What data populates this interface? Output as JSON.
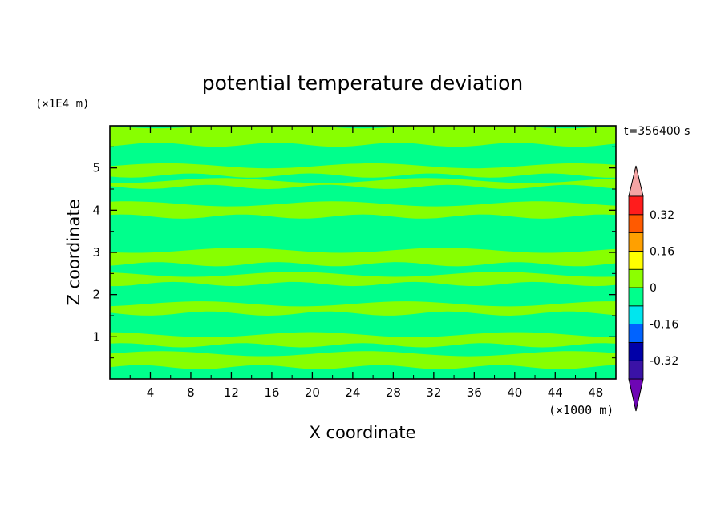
{
  "chart_data": {
    "type": "heatmap",
    "title": "potential temperature deviation",
    "xlabel": "X coordinate",
    "ylabel": "Z coordinate",
    "x_unit": "(×1000 m)",
    "y_unit": "(×1E4 m)",
    "time_label": "t=356400 s",
    "xlim": [
      0,
      50
    ],
    "ylim": [
      0,
      6
    ],
    "x_ticks": [
      4,
      8,
      12,
      16,
      20,
      24,
      28,
      32,
      36,
      40,
      44,
      48
    ],
    "y_ticks": [
      1,
      2,
      3,
      4,
      5
    ],
    "colorbar": {
      "levels": [
        -0.4,
        -0.32,
        -0.24,
        -0.16,
        -0.08,
        0.0,
        0.08,
        0.16,
        0.24,
        0.32,
        0.4
      ],
      "tick_labels": [
        "-0.32",
        "-0.16",
        "0",
        "0.16",
        "0.32"
      ],
      "tick_values": [
        -0.32,
        -0.16,
        0,
        0.16,
        0.32
      ],
      "colors": [
        "#3a12a6",
        "#0000a8",
        "#0063ff",
        "#00e6ee",
        "#00ff8c",
        "#8cff00",
        "#ffff00",
        "#ffa000",
        "#ff5a00",
        "#ff1c1c"
      ],
      "under_color": "#6e06b4",
      "over_color": "#f4a4a4"
    },
    "field_colors": {
      "positive": "#88ff00",
      "negative": "#00ff8c"
    },
    "bands": [
      {
        "z": [
          0.28,
          0.6
        ],
        "value": 0.04
      },
      {
        "z": [
          0.8,
          1.05
        ],
        "value": 0.04
      },
      {
        "z": [
          1.18,
          1.32
        ],
        "value": -0.04
      },
      {
        "z": [
          1.55,
          1.78
        ],
        "value": 0.04
      },
      {
        "z": [
          1.9,
          2.1
        ],
        "value": -0.04
      },
      {
        "z": [
          2.25,
          2.48
        ],
        "value": 0.04
      },
      {
        "z": [
          2.72,
          3.05
        ],
        "value": 0.04
      },
      {
        "z": [
          3.3,
          3.55
        ],
        "value": -0.04
      },
      {
        "z": [
          3.85,
          4.15
        ],
        "value": 0.04
      },
      {
        "z": [
          4.3,
          4.45
        ],
        "value": -0.04
      },
      {
        "z": [
          4.55,
          4.7
        ],
        "value": 0.04
      },
      {
        "z": [
          4.82,
          5.05
        ],
        "value": 0.04
      },
      {
        "z": [
          5.15,
          5.32
        ],
        "value": -0.04
      },
      {
        "z": [
          5.55,
          6.0
        ],
        "value": 0.04
      }
    ]
  }
}
